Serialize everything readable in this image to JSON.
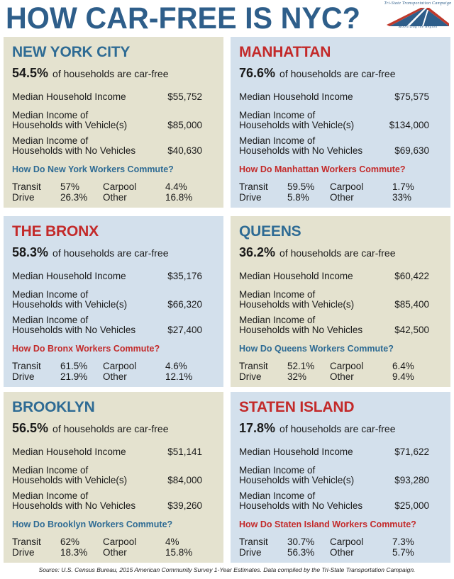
{
  "title": "HOW CAR-FREE IS NYC?",
  "logo": {
    "name": "Tri-State Transportation Campaign",
    "tagline": "Mobilizing the Region"
  },
  "labels": {
    "car_free_text": "of households are car-free",
    "median_income": "Median Household Income",
    "with_vehicles": [
      "Median Income of",
      "Households with Vehicle(s)"
    ],
    "no_vehicles": [
      "Median Income of",
      "Households with No Vehicles"
    ],
    "transit": "Transit",
    "drive": "Drive",
    "carpool": "Carpool",
    "other": "Other"
  },
  "boroughs": [
    {
      "name": "NEW YORK CITY",
      "car_free_pct": "54.5%",
      "median_income": "$55,752",
      "income_with_vehicles": "$85,000",
      "income_no_vehicles": "$40,630",
      "commute_question": "How Do New York Workers Commute?",
      "transit": "57%",
      "drive": "26.3%",
      "carpool": "4.4%",
      "other": "16.8%"
    },
    {
      "name": "MANHATTAN",
      "car_free_pct": "76.6%",
      "median_income": "$75,575",
      "income_with_vehicles": "$134,000",
      "income_no_vehicles": "$69,630",
      "commute_question": "How Do Manhattan Workers Commute?",
      "transit": "59.5%",
      "drive": "5.8%",
      "carpool": "1.7%",
      "other": "33%"
    },
    {
      "name": "THE BRONX",
      "car_free_pct": "58.3%",
      "median_income": "$35,176",
      "income_with_vehicles": "$66,320",
      "income_no_vehicles": "$27,400",
      "commute_question": "How Do Bronx Workers Commute?",
      "transit": "61.5%",
      "drive": "21.9%",
      "carpool": "4.6%",
      "other": "12.1%"
    },
    {
      "name": "QUEENS",
      "car_free_pct": "36.2%",
      "median_income": "$60,422",
      "income_with_vehicles": "$85,400",
      "income_no_vehicles": "$42,500",
      "commute_question": "How Do Queens Workers Commute?",
      "transit": "52.1%",
      "drive": "32%",
      "carpool": "6.4%",
      "other": "9.4%"
    },
    {
      "name": "BROOKLYN",
      "car_free_pct": "56.5%",
      "median_income": "$51,141",
      "income_with_vehicles": "$84,000",
      "income_no_vehicles": "$39,260",
      "commute_question": "How Do Brooklyn Workers Commute?",
      "transit": "62%",
      "drive": "18.3%",
      "carpool": "4%",
      "other": "15.8%"
    },
    {
      "name": "STATEN ISLAND",
      "car_free_pct": "17.8%",
      "median_income": "$71,622",
      "income_with_vehicles": "$93,280",
      "income_no_vehicles": "$25,000",
      "commute_question": "How Do Staten Island Workers Commute?",
      "transit": "30.7%",
      "drive": "56.3%",
      "carpool": "7.3%",
      "other": "5.7%"
    }
  ],
  "colors": {
    "title_blue": "#2e5e8a",
    "accent_blue": "#2e6b94",
    "accent_red": "#c32a2a",
    "card_blue": "#d3e0ec",
    "card_tan": "#e4e2cf",
    "logo_red": "#c0392b"
  },
  "source": "Source: U.S. Census Bureau, 2015 American Community Survey 1-Year Estimates. Data compiled by the Tri-State Transportation Campaign."
}
